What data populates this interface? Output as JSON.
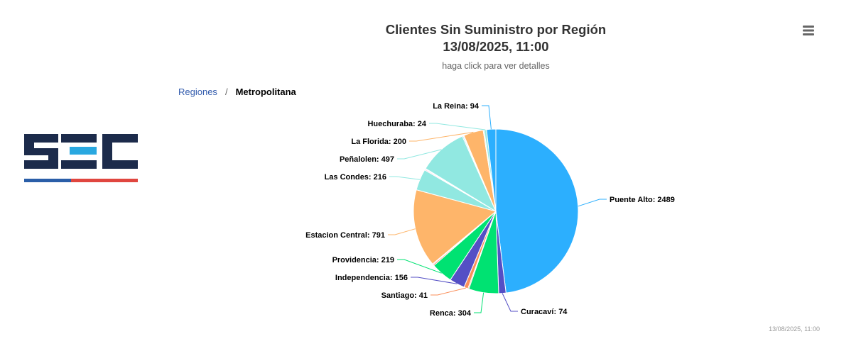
{
  "title_line1": "Clientes Sin Suministro por Región",
  "title_line2": "13/08/2025, 11:00",
  "subtitle": "haga click para ver detalles",
  "menu_icon": "hamburger-menu-icon",
  "breadcrumb": {
    "parent": "Regiones",
    "separator": "/",
    "current": "Metropolitana"
  },
  "logo": {
    "text": "SEC",
    "colors": {
      "letters": "#1c2b4b",
      "accent": "#29a8e0",
      "stripe_blue": "#2a5ea8",
      "stripe_red": "#e0463f"
    }
  },
  "timestamp": "13/08/2025, 11:00",
  "chart_data": {
    "type": "pie",
    "title": "Clientes Sin Suministro por Región",
    "subtitle": "haga click para ver detalles",
    "series": [
      {
        "name": "Puente Alto",
        "value": 2489,
        "color": "#2caffe",
        "label_side": "right"
      },
      {
        "name": "Curacaví",
        "value": 74,
        "color": "#544fc5",
        "label_side": "right"
      },
      {
        "name": "Renca",
        "value": 304,
        "color": "#00e272",
        "label_side": "left"
      },
      {
        "name": "",
        "value": 10,
        "color": "#fe6a35",
        "label_side": "none"
      },
      {
        "name": "Santiago",
        "value": 41,
        "color": "#fa8f5a",
        "label_side": "left"
      },
      {
        "name": "Independencia",
        "value": 156,
        "color": "#544fc5",
        "label_side": "left"
      },
      {
        "name": "Providencia",
        "value": 219,
        "color": "#00e272",
        "label_side": "left"
      },
      {
        "name": "",
        "value": 12,
        "color": "#fe6a35",
        "label_side": "none"
      },
      {
        "name": "",
        "value": 9,
        "color": "#d568fb",
        "label_side": "none"
      },
      {
        "name": "Estacion Central",
        "value": 791,
        "color": "#feb56a",
        "label_side": "left"
      },
      {
        "name": "Las Condes",
        "value": 216,
        "color": "#91e8e1",
        "label_side": "left"
      },
      {
        "name": "",
        "value": 10,
        "color": "#f4b5d0",
        "label_side": "none"
      },
      {
        "name": "",
        "value": 8,
        "color": "#c8c8f0",
        "label_side": "none"
      },
      {
        "name": "Peñalolen",
        "value": 497,
        "color": "#91e8e1",
        "label_side": "left"
      },
      {
        "name": "",
        "value": 10,
        "color": "#6fc5ef",
        "label_side": "none"
      },
      {
        "name": "",
        "value": 8,
        "color": "#9080f0",
        "label_side": "none"
      },
      {
        "name": "La Florida",
        "value": 200,
        "color": "#feb56a",
        "label_side": "left"
      },
      {
        "name": "",
        "value": 10,
        "color": "#a8e8c8",
        "label_side": "none"
      },
      {
        "name": "Huechuraba",
        "value": 24,
        "color": "#91e8e1",
        "label_side": "left"
      },
      {
        "name": "La Reina",
        "value": 94,
        "color": "#2caffe",
        "label_side": "left"
      }
    ]
  }
}
